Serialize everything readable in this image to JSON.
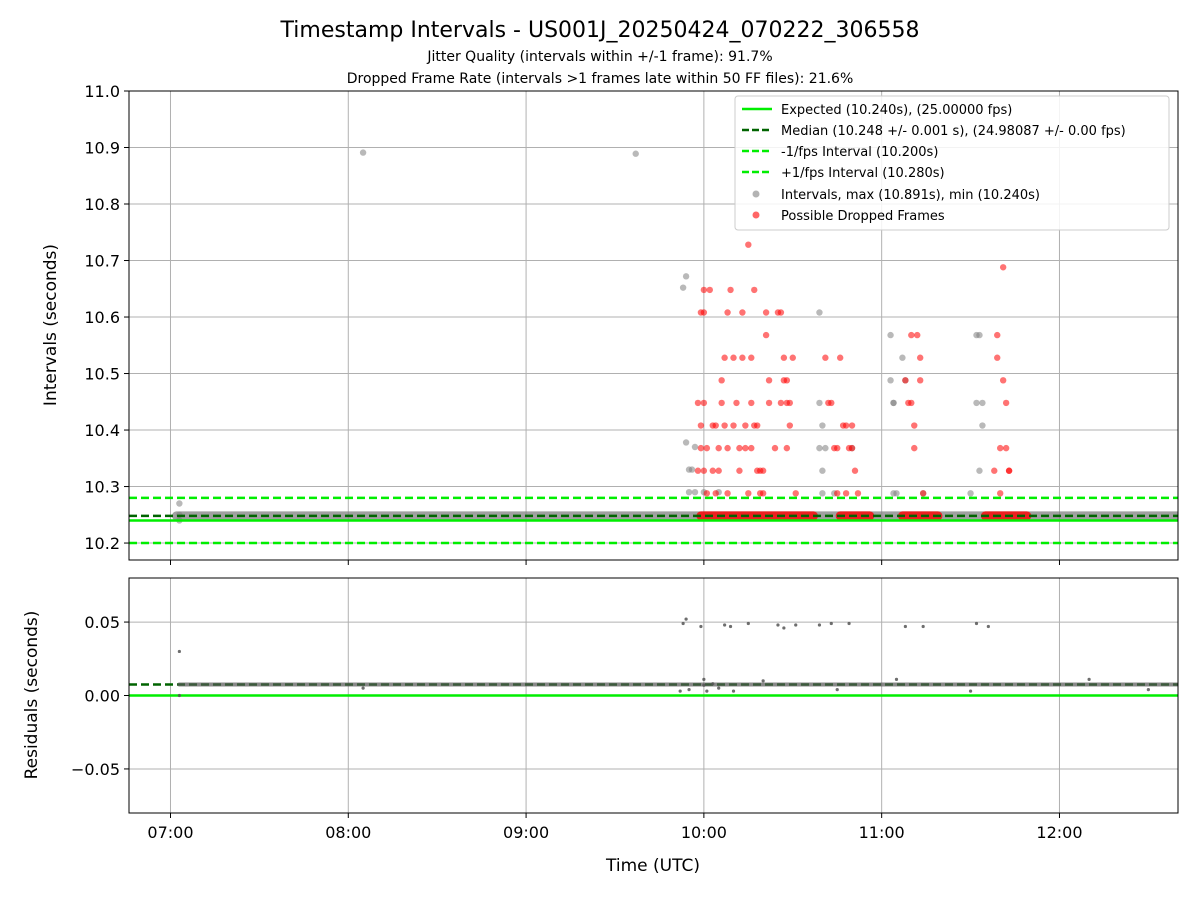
{
  "chart_data": [
    {
      "type": "scatter",
      "title": "Timestamp Intervals - US001J_20250424_070222_306558",
      "subtitle_lines": [
        "Jitter Quality (intervals within +/-1 frame): 91.7%",
        "Dropped Frame Rate (intervals >1 frames late within 50 FF files): 21.6%"
      ],
      "xlabel": "",
      "ylabel": "Intervals (seconds)",
      "x_unit": "time (UTC, HH:MM)",
      "xlim": [
        "06:46",
        "12:40"
      ],
      "ylim": [
        10.17,
        11.0
      ],
      "yticks": [
        "10.2",
        "10.3",
        "10.4",
        "10.5",
        "10.6",
        "10.7",
        "10.8",
        "10.9",
        "11.0"
      ],
      "grid": true,
      "legend_position": "top-right",
      "reference_lines": [
        {
          "name": "Expected (10.240s), (25.00000 fps)",
          "y": 10.24,
          "color": "#00ee00",
          "style": "solid"
        },
        {
          "name": "Median (10.248 +/- 0.001 s), (24.98087 +/- 0.00 fps)",
          "y": 10.248,
          "color": "#006400",
          "style": "dashed"
        },
        {
          "name": "-1/fps Interval (10.200s)",
          "y": 10.2,
          "color": "#00ee00",
          "style": "dashed"
        },
        {
          "name": "+1/fps Interval (10.280s)",
          "y": 10.28,
          "color": "#00ee00",
          "style": "dashed"
        }
      ],
      "series": [
        {
          "name": "Intervals, max (10.891s), min (10.240s)",
          "color": "#808080",
          "baseline": {
            "x_start": "07:02",
            "x_end": "12:40",
            "y": 10.248
          },
          "x": [
            "07:03",
            "07:03",
            "07:03",
            "08:05",
            "09:37",
            "09:53",
            "09:54",
            "09:54",
            "09:55",
            "09:55",
            "09:56",
            "09:57",
            "09:57",
            "10:00",
            "10:05",
            "10:39",
            "10:39",
            "10:40",
            "10:40",
            "10:40",
            "10:41",
            "11:03",
            "11:03",
            "11:04",
            "11:04",
            "11:05",
            "11:07",
            "11:08",
            "11:32",
            "11:32",
            "11:33",
            "11:33",
            "11:34",
            "11:34",
            "10:39",
            "11:04",
            "11:30",
            "10:50",
            "10:44",
            "11:14"
          ],
          "y": [
            10.27,
            10.25,
            10.24,
            10.891,
            10.889,
            10.652,
            10.672,
            10.378,
            10.29,
            10.33,
            10.33,
            10.37,
            10.29,
            10.29,
            10.29,
            10.608,
            10.448,
            10.408,
            10.328,
            10.288,
            10.368,
            10.568,
            10.488,
            10.448,
            10.448,
            10.288,
            10.528,
            10.488,
            10.568,
            10.448,
            10.568,
            10.328,
            10.448,
            10.408,
            10.368,
            10.288,
            10.288,
            10.368,
            10.288,
            10.288
          ]
        },
        {
          "name": "Possible Dropped Frames",
          "color": "#ff0000",
          "baseline_segments": [
            {
              "x_start": "09:59",
              "x_end": "10:37",
              "y": 10.248
            },
            {
              "x_start": "10:46",
              "x_end": "10:56",
              "y": 10.248
            },
            {
              "x_start": "11:07",
              "x_end": "11:19",
              "y": 10.248
            },
            {
              "x_start": "11:35",
              "x_end": "11:49",
              "y": 10.248
            }
          ],
          "x": [
            "09:58",
            "09:58",
            "09:59",
            "09:59",
            "09:59",
            "10:00",
            "10:00",
            "10:00",
            "10:00",
            "10:01",
            "10:01",
            "10:02",
            "10:03",
            "10:03",
            "10:04",
            "10:04",
            "10:05",
            "10:05",
            "10:06",
            "10:06",
            "10:07",
            "10:07",
            "10:08",
            "10:08",
            "10:08",
            "10:09",
            "10:10",
            "10:10",
            "10:11",
            "10:12",
            "10:12",
            "10:13",
            "10:13",
            "10:14",
            "10:14",
            "10:15",
            "10:15",
            "10:16",
            "10:16",
            "10:16",
            "10:17",
            "10:17",
            "10:18",
            "10:18",
            "10:19",
            "10:19",
            "10:20",
            "10:20",
            "10:21",
            "10:21",
            "10:22",
            "10:22",
            "10:24",
            "10:25",
            "10:26",
            "10:26",
            "10:27",
            "10:27",
            "10:28",
            "10:28",
            "10:28",
            "10:29",
            "10:29",
            "10:30",
            "10:31",
            "10:41",
            "10:42",
            "10:43",
            "10:44",
            "10:45",
            "10:45",
            "10:46",
            "10:47",
            "10:48",
            "10:48",
            "10:49",
            "10:50",
            "10:50",
            "10:51",
            "10:52",
            "11:08",
            "11:09",
            "11:10",
            "11:10",
            "11:11",
            "11:11",
            "11:12",
            "11:13",
            "11:13",
            "11:14",
            "11:38",
            "11:39",
            "11:39",
            "11:40",
            "11:40",
            "11:41",
            "11:41",
            "11:42",
            "11:42",
            "11:43",
            "11:43"
          ],
          "y": [
            10.328,
            10.448,
            10.608,
            10.408,
            10.368,
            10.648,
            10.608,
            10.448,
            10.328,
            10.368,
            10.288,
            10.648,
            10.408,
            10.328,
            10.408,
            10.288,
            10.368,
            10.328,
            10.488,
            10.448,
            10.528,
            10.408,
            10.608,
            10.368,
            10.288,
            10.648,
            10.528,
            10.408,
            10.448,
            10.368,
            10.328,
            10.608,
            10.528,
            10.408,
            10.368,
            10.288,
            10.728,
            10.528,
            10.448,
            10.368,
            10.648,
            10.408,
            10.408,
            10.328,
            10.328,
            10.288,
            10.328,
            10.288,
            10.608,
            10.568,
            10.488,
            10.448,
            10.368,
            10.608,
            10.608,
            10.448,
            10.528,
            10.488,
            10.488,
            10.448,
            10.368,
            10.448,
            10.408,
            10.528,
            10.288,
            10.528,
            10.448,
            10.448,
            10.368,
            10.368,
            10.288,
            10.528,
            10.408,
            10.408,
            10.288,
            10.368,
            10.408,
            10.368,
            10.328,
            10.288,
            10.488,
            10.448,
            10.568,
            10.448,
            10.408,
            10.368,
            10.568,
            10.528,
            10.488,
            10.288,
            10.328,
            10.568,
            10.528,
            10.368,
            10.288,
            10.688,
            10.488,
            10.448,
            10.368,
            10.328,
            10.328
          ]
        }
      ]
    },
    {
      "type": "scatter",
      "title": "",
      "xlabel": "Time (UTC)",
      "ylabel": "Residuals (seconds)",
      "xlim": [
        "06:46",
        "12:40"
      ],
      "ylim": [
        -0.08,
        0.08
      ],
      "yticks": [
        "−0.05",
        "0.00",
        "0.05"
      ],
      "xticks": [
        "07:00",
        "08:00",
        "09:00",
        "10:00",
        "11:00",
        "12:00"
      ],
      "grid": true,
      "reference_lines": [
        {
          "name": "",
          "y": 0.0,
          "color": "#00ee00",
          "style": "solid"
        },
        {
          "name": "",
          "y": 0.0075,
          "color": "#006400",
          "style": "dashed"
        }
      ],
      "series": [
        {
          "name": "",
          "color": "#555555",
          "baseline": {
            "x_start": "07:03",
            "x_end": "12:40",
            "y": 0.0075
          },
          "x": [
            "07:03",
            "07:03",
            "08:05",
            "09:53",
            "09:54",
            "09:59",
            "10:00",
            "10:01",
            "10:03",
            "10:05",
            "10:07",
            "10:09",
            "10:15",
            "10:25",
            "10:27",
            "10:31",
            "10:39",
            "10:43",
            "10:49",
            "11:08",
            "11:14",
            "11:32",
            "11:36",
            "09:52",
            "09:55",
            "10:00",
            "10:10",
            "10:20",
            "10:45",
            "11:05",
            "11:30",
            "12:10",
            "12:30"
          ],
          "y": [
            0.03,
            0.0,
            0.005,
            0.049,
            0.052,
            0.047,
            0.007,
            0.003,
            0.008,
            0.005,
            0.048,
            0.047,
            0.049,
            0.048,
            0.046,
            0.048,
            0.048,
            0.049,
            0.049,
            0.047,
            0.047,
            0.049,
            0.047,
            0.003,
            0.004,
            0.011,
            0.003,
            0.01,
            0.004,
            0.011,
            0.003,
            0.011,
            0.004
          ]
        }
      ]
    }
  ]
}
